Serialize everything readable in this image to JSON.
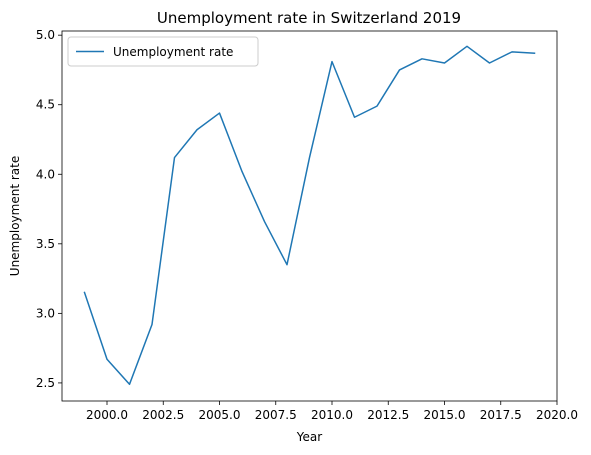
{
  "chart_data": {
    "type": "line",
    "title": "Unemployment rate in Switzerland 2019",
    "xlabel": "Year",
    "ylabel": "Unemployment rate",
    "xlim": [
      1998.0,
      2020.0
    ],
    "ylim": [
      2.37,
      5.03
    ],
    "x_ticks": [
      2000.0,
      2002.5,
      2005.0,
      2007.5,
      2010.0,
      2012.5,
      2015.0,
      2017.5,
      2020.0
    ],
    "x_tick_labels": [
      "2000.0",
      "2002.5",
      "2005.0",
      "2007.5",
      "2010.0",
      "2012.5",
      "2015.0",
      "2017.5",
      "2020.0"
    ],
    "y_ticks": [
      2.5,
      3.0,
      3.5,
      4.0,
      4.5,
      5.0
    ],
    "y_tick_labels": [
      "2.5",
      "3.0",
      "3.5",
      "4.0",
      "4.5",
      "5.0"
    ],
    "grid": false,
    "legend_placement": "top-left",
    "color": "#1f77b4",
    "series": [
      {
        "name": "Unemployment rate",
        "x": [
          1999,
          2000,
          2001,
          2002,
          2003,
          2004,
          2005,
          2006,
          2007,
          2008,
          2009,
          2010,
          2011,
          2012,
          2013,
          2014,
          2015,
          2016,
          2017,
          2018,
          2019
        ],
        "values": [
          3.15,
          2.67,
          2.49,
          2.92,
          4.12,
          4.32,
          4.44,
          4.02,
          3.66,
          3.35,
          4.12,
          4.81,
          4.41,
          4.49,
          4.75,
          4.83,
          4.8,
          4.92,
          4.8,
          4.88,
          4.87
        ]
      }
    ]
  }
}
